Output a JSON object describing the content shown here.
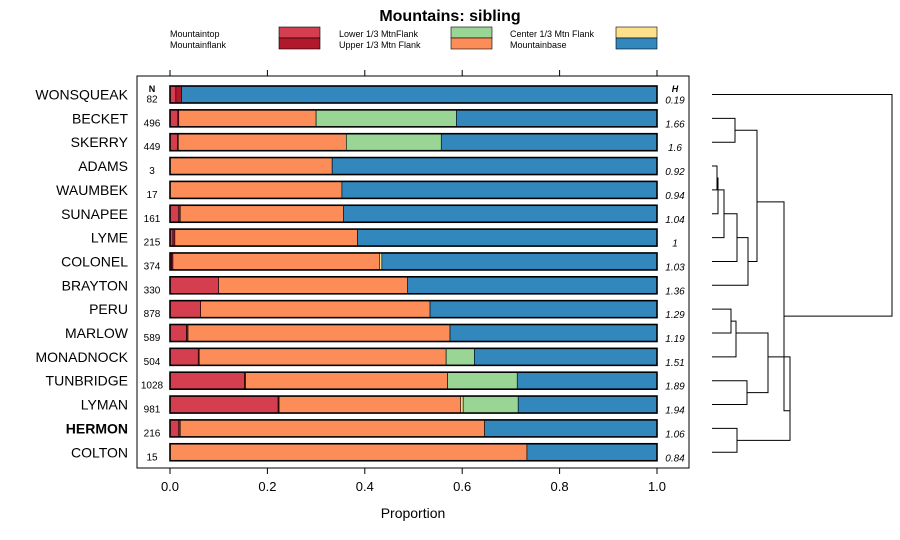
{
  "chart_data": {
    "type": "bar",
    "stacked": true,
    "orientation": "horizontal",
    "title": "Mountains: sibling",
    "xlabel": "Proportion",
    "xlim": [
      0,
      1
    ],
    "x_ticks": [
      "0.0",
      "0.2",
      "0.4",
      "0.6",
      "0.8",
      "1.0"
    ],
    "x_tick_values": [
      0,
      0.2,
      0.4,
      0.6,
      0.8,
      1.0
    ],
    "n_header": "N",
    "h_header": "H",
    "highlight": "HERMON",
    "legend": [
      {
        "label": "Mountaintop",
        "color": "#d53e4f"
      },
      {
        "label": "Mountainflank",
        "color": "#b2182b"
      },
      {
        "label": "Lower 1/3 MtnFlank",
        "color": "#99d594"
      },
      {
        "label": "Upper 1/3 Mtn Flank",
        "color": "#fc8d59"
      },
      {
        "label": "Center 1/3 Mtn Flank",
        "color": "#fee08b"
      },
      {
        "label": "Mountainbase",
        "color": "#3288bd"
      }
    ],
    "segment_order": [
      "Mountaintop",
      "Mountainflank",
      "Upper 1/3 Mtn Flank",
      "Center 1/3 Mtn Flank",
      "Lower 1/3 MtnFlank",
      "Mountainbase"
    ],
    "categories": [
      "WONSQUEAK",
      "BECKET",
      "SKERRY",
      "ADAMS",
      "WAUMBEK",
      "SUNAPEE",
      "LYME",
      "COLONEL",
      "BRAYTON",
      "PERU",
      "MARLOW",
      "MONADNOCK",
      "TUNBRIDGE",
      "LYMAN",
      "HERMON",
      "COLTON"
    ],
    "n": [
      82,
      496,
      449,
      3,
      17,
      161,
      215,
      374,
      330,
      878,
      589,
      504,
      1028,
      981,
      216,
      15
    ],
    "h": [
      "0.19",
      "1.66",
      "1.6",
      "0.92",
      "0.94",
      "1.04",
      "1",
      "1.03",
      "1.36",
      "1.29",
      "1.19",
      "1.51",
      "1.89",
      "1.94",
      "1.06",
      "0.84"
    ],
    "series": [
      {
        "name": "Mountaintop",
        "values": [
          0.012,
          0.016,
          0.015,
          0,
          0,
          0.018,
          0.006,
          0.003,
          0.1,
          0.063,
          0.034,
          0.058,
          0.153,
          0.222,
          0.018,
          0
        ]
      },
      {
        "name": "Mountainflank",
        "values": [
          0.012,
          0.002,
          0.002,
          0,
          0,
          0.003,
          0.004,
          0.003,
          0,
          0,
          0.003,
          0.002,
          0.002,
          0.002,
          0.003,
          0
        ]
      },
      {
        "name": "Upper 1/3 Mtn Flank",
        "values": [
          0,
          0.282,
          0.345,
          0.333,
          0.353,
          0.335,
          0.375,
          0.424,
          0.388,
          0.471,
          0.538,
          0.507,
          0.415,
          0.373,
          0.625,
          0.733
        ]
      },
      {
        "name": "Center 1/3 Mtn Flank",
        "values": [
          0,
          0,
          0,
          0,
          0,
          0,
          0,
          0.005,
          0,
          0,
          0,
          0,
          0,
          0.005,
          0,
          0
        ]
      },
      {
        "name": "Lower 1/3 MtnFlank",
        "values": [
          0,
          0.288,
          0.195,
          0,
          0,
          0,
          0,
          0,
          0,
          0,
          0,
          0.058,
          0.143,
          0.113,
          0,
          0
        ]
      },
      {
        "name": "Mountainbase",
        "values": [
          0.976,
          0.412,
          0.443,
          0.667,
          0.647,
          0.644,
          0.615,
          0.565,
          0.512,
          0.466,
          0.425,
          0.375,
          0.287,
          0.285,
          0.354,
          0.267
        ]
      }
    ]
  }
}
